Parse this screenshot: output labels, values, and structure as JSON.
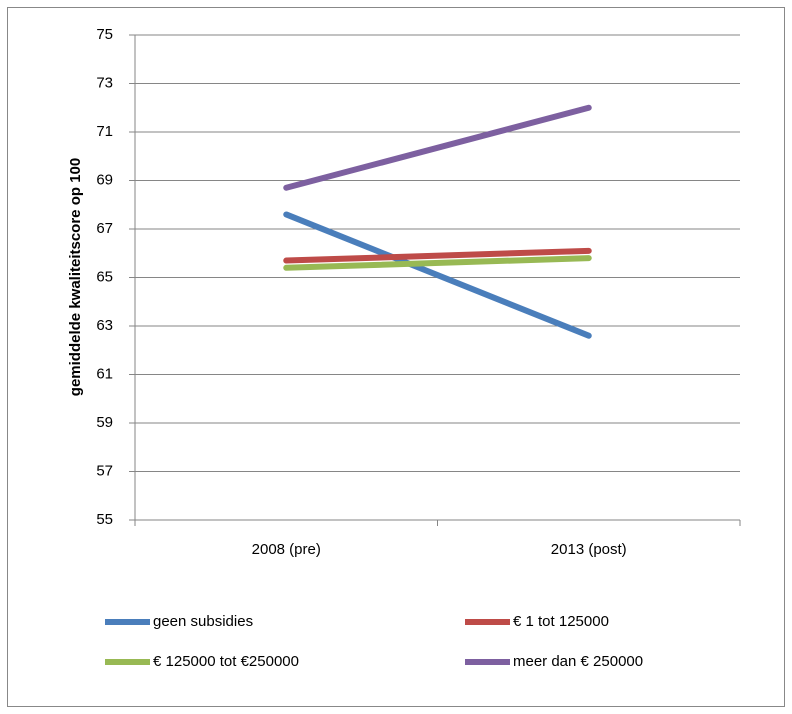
{
  "chart_data": {
    "type": "line",
    "y_label": "gemiddelde kwaliteitscore op 100",
    "categories": [
      "2008 (pre)",
      "2013 (post)"
    ],
    "series": [
      {
        "name": "geen subsidies",
        "color": "#4a7ebb",
        "values": [
          67.6,
          62.6
        ]
      },
      {
        "name": "€ 1 tot 125000",
        "color": "#be4b48",
        "values": [
          65.7,
          66.1
        ]
      },
      {
        "name": "€ 125000 tot €250000",
        "color": "#98b954",
        "values": [
          65.4,
          65.8
        ]
      },
      {
        "name": "meer dan € 250000",
        "color": "#7d60a0",
        "values": [
          68.7,
          72.0
        ]
      }
    ],
    "ylim": [
      55,
      75
    ],
    "yticks": [
      55,
      57,
      59,
      61,
      63,
      65,
      67,
      69,
      71,
      73,
      75
    ],
    "grid": true
  }
}
